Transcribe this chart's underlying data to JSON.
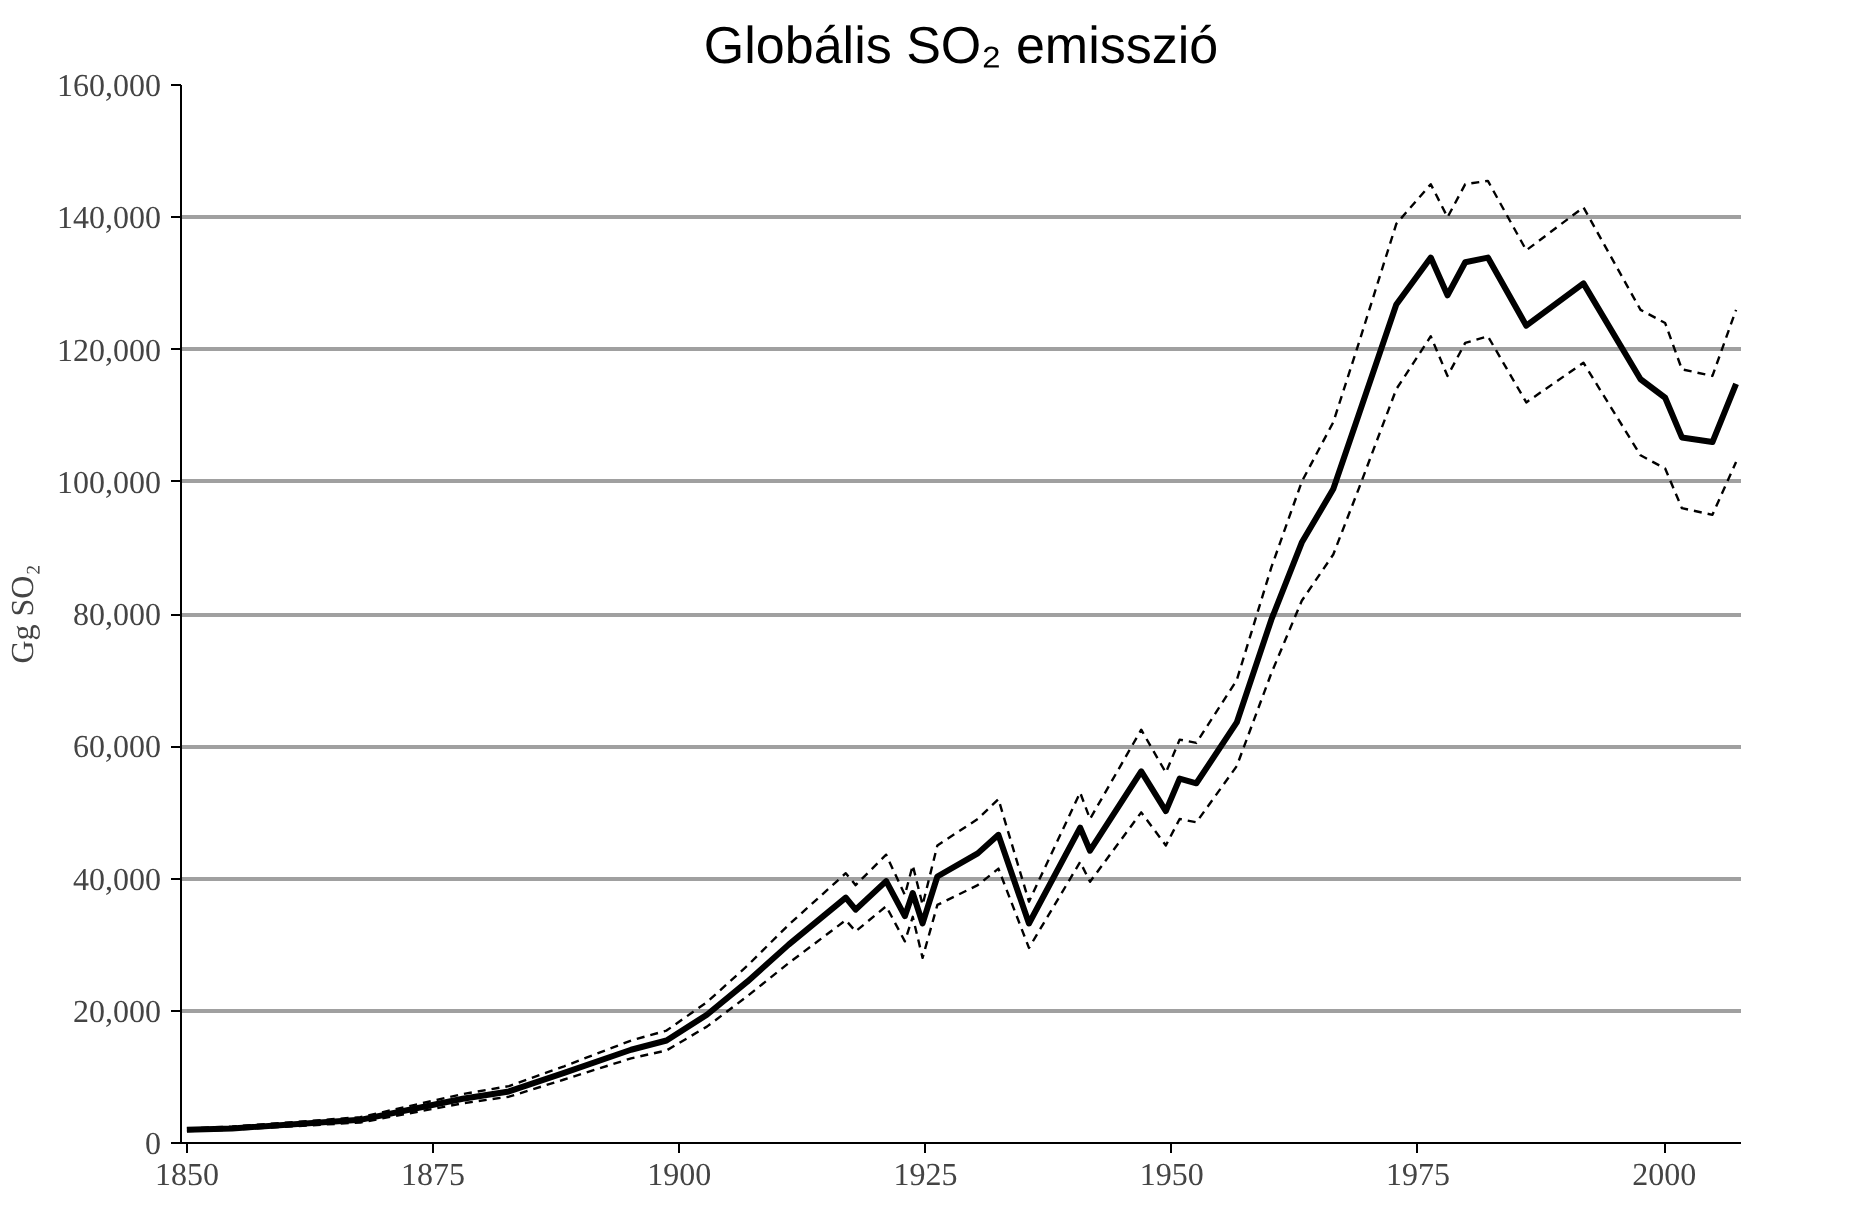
{
  "chart_data": {
    "type": "line",
    "title": "Globális SO₂ emisszió",
    "ylabel": "Gg SO₂",
    "x": [
      1850,
      1854.6,
      1867.6,
      1878,
      1882.7,
      1888.3,
      1895.1,
      1898.7,
      1902.8,
      1906.9,
      1911.1,
      1916.9,
      1917.9,
      1921.0,
      1922.9,
      1923.7,
      1924.7,
      1926.2,
      1930.3,
      1932.4,
      1935.5,
      1940.7,
      1941.7,
      1946.9,
      1949.4,
      1950.8,
      1952.5,
      1956.6,
      1960.1,
      1963.2,
      1966.4,
      1969.0,
      1972.8,
      1976.3,
      1978.0,
      1979.8,
      1982.1,
      1986.0,
      1991.8,
      1997.6,
      2000.1,
      2001.8,
      2004.9,
      2007.3
    ],
    "series": [
      {
        "color": "#000000",
        "line_style": "solid",
        "values": [
          2000,
          2200,
          3500,
          6700,
          7800,
          10600,
          14100,
          15500,
          19400,
          24400,
          30000,
          37100,
          35300,
          39600,
          34300,
          37800,
          33200,
          40300,
          43800,
          46600,
          33200,
          47700,
          44200,
          56200,
          50200,
          55100,
          54400,
          63600,
          79100,
          90800,
          98900,
          110200,
          126800,
          133900,
          128200,
          133200,
          133900,
          123600,
          130000,
          115500,
          112700,
          106700,
          106000,
          114800
        ]
      },
      {
        "color": "#000000",
        "line_style": "dashed",
        "values": [
          1800,
          2000,
          3100,
          6000,
          7000,
          9600,
          12800,
          14000,
          17600,
          22200,
          27200,
          33700,
          32000,
          35800,
          30500,
          34200,
          28000,
          36000,
          39000,
          41500,
          29500,
          42500,
          39500,
          50000,
          45000,
          49000,
          48500,
          57000,
          71000,
          82000,
          89000,
          99000,
          114000,
          122000,
          116000,
          121000,
          122000,
          112000,
          118000,
          104000,
          102000,
          96000,
          95000,
          103000
        ]
      },
      {
        "color": "#000000",
        "line_style": "dashed",
        "values": [
          2200,
          2500,
          3900,
          7400,
          8600,
          11600,
          15500,
          17000,
          21300,
          26800,
          33000,
          40800,
          39000,
          43600,
          37500,
          42000,
          36000,
          45000,
          49000,
          52000,
          36500,
          53000,
          49000,
          62500,
          56000,
          61000,
          60500,
          70000,
          87000,
          100000,
          109000,
          121000,
          139000,
          145000,
          140000,
          145000,
          145500,
          135000,
          141500,
          126000,
          124000,
          117000,
          116000,
          126000
        ]
      }
    ],
    "xlim": [
      1849.4,
      2007.8
    ],
    "xticks": [
      1850,
      1875,
      1900,
      1925,
      1950,
      1975,
      2000
    ],
    "ylim": [
      0,
      160000
    ],
    "yticks": [
      0,
      {
        "value": 20000,
        "label": "20,000"
      },
      {
        "value": 40000,
        "label": "40,000"
      },
      {
        "value": 60000,
        "label": "60,000"
      },
      {
        "value": 80000,
        "label": "80,000"
      },
      {
        "value": 100000,
        "label": "100,000"
      },
      {
        "value": 120000,
        "label": "120,000"
      },
      {
        "value": 140000,
        "label": "140,000"
      },
      {
        "value": 160000,
        "label": "160,000"
      }
    ],
    "grid": "y",
    "marker": "none"
  }
}
